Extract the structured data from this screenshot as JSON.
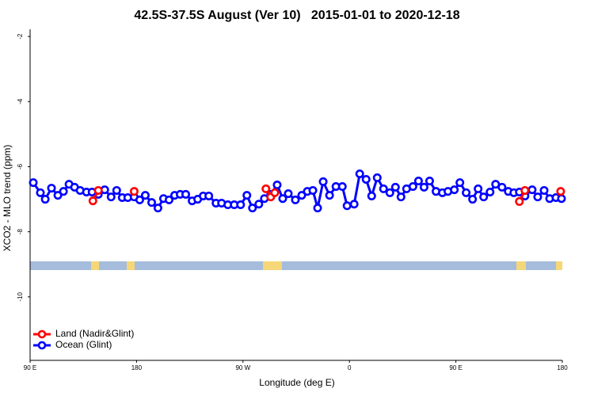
{
  "chart_data": {
    "type": "line",
    "title": "42.5S-37.5S August (Ver 10)   2015-01-01 to 2020-12-18",
    "x_label": "Longitude (deg E)",
    "y_label": "XCO2 - MLO trend (ppm)",
    "xlim": [
      90,
      540
    ],
    "ylim": [
      -11.95,
      -1.78
    ],
    "xticks": [
      {
        "value": 90,
        "label": "90 E"
      },
      180,
      {
        "value": 270,
        "label": "90 W"
      },
      {
        "value": 360,
        "label": "0"
      },
      {
        "value": 450,
        "label": "90 E"
      },
      {
        "value": 540,
        "label": "180"
      }
    ],
    "yticks": [
      -2,
      -4,
      -6,
      -8,
      -10
    ],
    "legend": "bottom-left",
    "series": [
      {
        "name": "Land (Nadir&Glint)",
        "color": "#ff0000",
        "x": [
          143.1,
          147.7,
          null,
          178.0,
          null,
          289.4,
          293.5,
          296.9,
          null,
          503.7,
          508.4,
          null,
          538.6
        ],
        "values": [
          -7.05,
          -6.73,
          null,
          -6.76,
          null,
          -6.68,
          -6.93,
          -6.8,
          null,
          -7.07,
          -6.73,
          null,
          -6.76
        ]
      },
      {
        "name": "Ocean (Glint)",
        "color": "#0000ff",
        "x": [
          92.7,
          98.7,
          102.8,
          108.1,
          113.5,
          118.2,
          122.9,
          127.6,
          132.3,
          137.7,
          142.4,
          147.7,
          153.1,
          158.5,
          163.2,
          167.9,
          172.6,
          178.0,
          182.7,
          187.4,
          192.8,
          198.1,
          202.8,
          207.5,
          212.2,
          216.9,
          221.6,
          227.0,
          231.7,
          236.4,
          241.1,
          247.2,
          251.9,
          257.2,
          262.6,
          268.0,
          273.3,
          278.0,
          283.4,
          288.1,
          293.5,
          298.9,
          303.6,
          308.3,
          314.3,
          319.7,
          324.4,
          329.1,
          333.1,
          337.8,
          343.2,
          348.6,
          354.0,
          358.0,
          364.0,
          368.7,
          374.1,
          378.8,
          383.5,
          388.8,
          394.2,
          398.9,
          403.6,
          408.3,
          413.7,
          418.4,
          423.1,
          427.8,
          433.2,
          438.6,
          443.3,
          448.7,
          453.4,
          458.7,
          464.1,
          468.8,
          473.5,
          478.9,
          483.6,
          489.0,
          494.3,
          499.0,
          503.7,
          508.4,
          514.5,
          519.2,
          524.6,
          529.3,
          534.6,
          539.3
        ],
        "values": [
          -6.49,
          -6.8,
          -7.0,
          -6.66,
          -6.88,
          -6.76,
          -6.54,
          -6.63,
          -6.73,
          -6.78,
          -6.78,
          -6.85,
          -6.71,
          -6.93,
          -6.73,
          -6.95,
          -6.95,
          -6.93,
          -7.02,
          -6.88,
          -7.1,
          -7.27,
          -6.98,
          -7.02,
          -6.88,
          -6.85,
          -6.85,
          -7.05,
          -7.0,
          -6.9,
          -6.9,
          -7.12,
          -7.12,
          -7.17,
          -7.17,
          -7.17,
          -6.88,
          -7.27,
          -7.15,
          -6.98,
          -6.85,
          -6.56,
          -6.98,
          -6.83,
          -7.02,
          -6.88,
          -6.76,
          -6.73,
          -7.27,
          -6.46,
          -6.88,
          -6.61,
          -6.61,
          -7.2,
          -7.15,
          -6.22,
          -6.39,
          -6.9,
          -6.34,
          -6.68,
          -6.8,
          -6.63,
          -6.93,
          -6.68,
          -6.61,
          -6.44,
          -6.63,
          -6.44,
          -6.76,
          -6.8,
          -6.76,
          -6.71,
          -6.49,
          -6.8,
          -7.0,
          -6.68,
          -6.93,
          -6.78,
          -6.54,
          -6.63,
          -6.76,
          -6.8,
          -6.78,
          -6.9,
          -6.71,
          -6.93,
          -6.73,
          -6.98,
          -6.95,
          -6.98
        ]
      }
    ]
  }
}
